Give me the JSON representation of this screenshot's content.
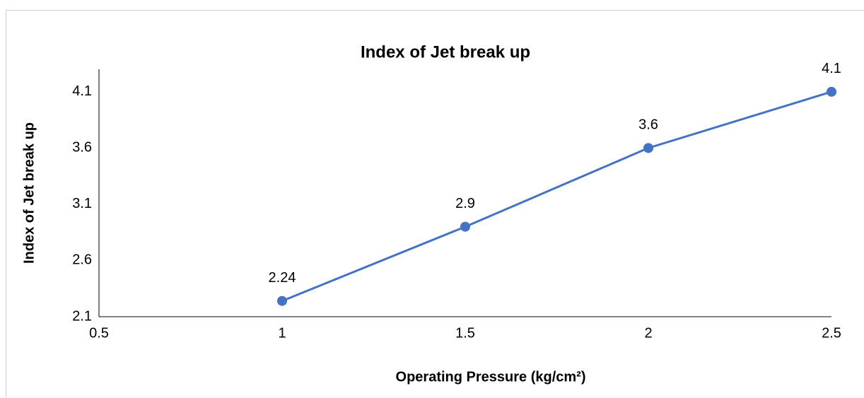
{
  "chart_data": {
    "type": "line",
    "title": "Index of Jet break up",
    "x_label": "Operating Pressure (kg/cm²)",
    "y_label": "Index of Jet break up",
    "x": [
      1,
      1.5,
      2,
      2.5
    ],
    "values": [
      2.24,
      2.9,
      3.6,
      4.1
    ],
    "color": "#4472c4",
    "xlim": [
      0.5,
      2.5
    ],
    "xticks": [
      0.5,
      1,
      1.5,
      2,
      2.5
    ],
    "ylim": [
      2.1,
      4.3
    ],
    "yticks": [
      2.1,
      2.6,
      3.1,
      3.6,
      4.1
    ],
    "grid": false,
    "data_labels": true
  }
}
